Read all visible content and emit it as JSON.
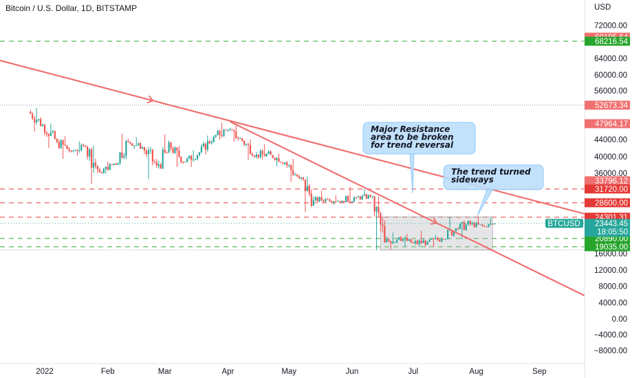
{
  "header": {
    "symbol_title": "Bitcoin / U.S. Dollar, 1D, BITSTAMP",
    "currency": "USD"
  },
  "chart_data": {
    "type": "candlestick",
    "title": "Bitcoin / U.S. Dollar, 1D, BITSTAMP",
    "ylabel": "USD",
    "ylim": [
      -9000,
      74000
    ],
    "y_ticks": [
      72000,
      64000,
      60000,
      56000,
      44000,
      40000,
      36000,
      16000,
      12000,
      8000,
      4000,
      0,
      -4000,
      -8000
    ],
    "y_tick_labels": [
      "72000.00",
      "64000.00",
      "60000.00",
      "56000.00",
      "44000.00",
      "40000.00",
      "36000.00",
      "16000.00",
      "12000.00",
      "8000.00",
      "4000.00",
      "0.00",
      "−4000.00",
      "−8000.00"
    ],
    "x_ticks": [
      "2022",
      "Feb",
      "Mar",
      "Apr",
      "May",
      "Jun",
      "Jul",
      "Aug",
      "Sep"
    ],
    "colors": {
      "up": "#26a69a",
      "down": "#ef5350",
      "trendline": "#f07070",
      "green_level": "#27a52b",
      "red_level": "#e53935"
    },
    "price_levels": [
      {
        "price": 69195.64,
        "label": "69195.64",
        "color": "#f07070",
        "line": "none"
      },
      {
        "price": 68216.54,
        "label": "68216.54",
        "color": "#27a52b",
        "line": "green-dashed"
      },
      {
        "price": 52673.34,
        "label": "52673.34",
        "color": "#f07070",
        "line": "gray-dotted"
      },
      {
        "price": 47964.17,
        "label": "47964.17",
        "color": "#f07070",
        "line": "none"
      },
      {
        "price": 33796.12,
        "label": "33796.12",
        "color": "#f07070",
        "line": "none"
      },
      {
        "price": 31720.0,
        "label": "31720.00",
        "color": "#e53935",
        "line": "red-dashed"
      },
      {
        "price": 28600.0,
        "label": "28600.00",
        "color": "#e53935",
        "line": "red-dashed"
      },
      {
        "price": 24301.31,
        "label": "24301.31",
        "color": "#e53935",
        "line": "red-dashed"
      },
      {
        "price": 20890.0,
        "label": "20890.00",
        "color": "#27a52b",
        "line": "green-dashed"
      },
      {
        "price": 19035.0,
        "label": "19035.00",
        "color": "#27a52b",
        "line": "green-dashed"
      },
      {
        "price": 17592,
        "label": "",
        "color": "#131722",
        "line": "gray-dotted"
      }
    ],
    "current_price": {
      "symbol": "BTCUSD",
      "price": 23443.45,
      "label": "23443.45",
      "countdown": "18:05:50",
      "color": "#26a69a"
    },
    "consolidation_box": {
      "x_from": "2022-06-15",
      "x_to": "2022-08-09",
      "y_from": 17600,
      "y_to": 24400
    },
    "trendlines": [
      {
        "from": [
          "2021-12-10",
          63500
        ],
        "to": [
          "2022-09-25",
          25000
        ]
      },
      {
        "from": [
          "2022-04-02",
          48500
        ],
        "to": [
          "2022-09-24",
          5500
        ]
      }
    ],
    "annotations": [
      {
        "text_lines": [
          "Major Resistance",
          "area to be broken",
          "for trend reversal"
        ],
        "anchor": [
          "2022-06-27",
          31200
        ]
      },
      {
        "text_lines": [
          "The trend turned",
          "sideways"
        ],
        "anchor": [
          "2022-07-28",
          23600
        ]
      }
    ],
    "ohlc_weekly": [
      [
        "2021-12-25",
        51000,
        52000,
        46000,
        47700
      ],
      [
        "2022-01-01",
        47700,
        48000,
        42000,
        43400
      ],
      [
        "2022-01-08",
        43400,
        44800,
        39500,
        41300
      ],
      [
        "2022-01-15",
        41300,
        43500,
        40300,
        42300
      ],
      [
        "2022-01-22",
        42300,
        42600,
        33000,
        36200
      ],
      [
        "2022-01-29",
        36200,
        38800,
        35900,
        38300
      ],
      [
        "2022-02-05",
        38300,
        45500,
        38000,
        43500
      ],
      [
        "2022-02-12",
        43500,
        44600,
        41800,
        42200
      ],
      [
        "2022-02-19",
        42200,
        42300,
        34300,
        37800
      ],
      [
        "2022-02-26",
        37800,
        45300,
        37000,
        42000
      ],
      [
        "2022-03-05",
        42000,
        42500,
        37500,
        38800
      ],
      [
        "2022-03-12",
        38800,
        41500,
        37500,
        41000
      ],
      [
        "2022-03-19",
        41000,
        45000,
        40500,
        44700
      ],
      [
        "2022-03-26",
        44700,
        48200,
        44000,
        46400
      ],
      [
        "2022-04-02",
        46400,
        47500,
        43500,
        43700
      ],
      [
        "2022-04-09",
        43700,
        44000,
        39200,
        40500
      ],
      [
        "2022-04-16",
        40500,
        42900,
        39300,
        40400
      ],
      [
        "2022-04-23",
        40400,
        40700,
        37600,
        38600
      ],
      [
        "2022-04-30",
        38600,
        39500,
        33500,
        34500
      ],
      [
        "2022-05-07",
        34500,
        35000,
        25800,
        29200
      ],
      [
        "2022-05-14",
        29200,
        31400,
        28700,
        29400
      ],
      [
        "2022-05-21",
        29400,
        30300,
        28000,
        29000
      ],
      [
        "2022-05-28",
        29000,
        32300,
        28700,
        29800
      ],
      [
        "2022-06-04",
        29800,
        31700,
        29200,
        30000
      ],
      [
        "2022-06-11",
        30000,
        30100,
        17600,
        20000
      ],
      [
        "2022-06-18",
        20000,
        21900,
        17900,
        21100
      ],
      [
        "2022-06-25",
        21100,
        21700,
        19000,
        19800
      ],
      [
        "2022-07-02",
        19800,
        22200,
        18900,
        20200
      ],
      [
        "2022-07-09",
        20200,
        21500,
        18900,
        20800
      ],
      [
        "2022-07-16",
        20800,
        24300,
        20700,
        22600
      ],
      [
        "2022-07-23",
        22600,
        23800,
        20700,
        23300
      ],
      [
        "2022-07-30",
        23300,
        24600,
        22700,
        22900
      ],
      [
        "2022-08-06",
        22900,
        24200,
        22800,
        23440
      ]
    ]
  }
}
